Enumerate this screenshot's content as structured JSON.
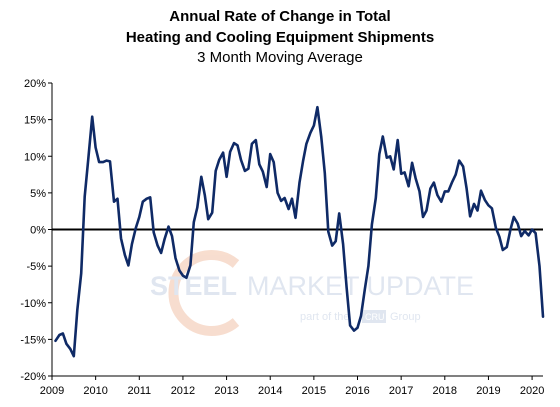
{
  "chart_data": {
    "type": "line",
    "title_lines": [
      "Annual Rate of Change in Total",
      "Heating and Cooling Equipment Shipments"
    ],
    "subtitle": "3 Month Moving Average",
    "xlabel": "",
    "ylabel": "",
    "xlim": [
      2009.0,
      2020.25
    ],
    "ylim": [
      -20,
      20
    ],
    "y_ticks": [
      20,
      15,
      10,
      5,
      0,
      -5,
      -10,
      -15,
      -20
    ],
    "y_tick_labels": [
      "20%",
      "15%",
      "10%",
      "5%",
      "0%",
      "-5%",
      "-10%",
      "-15%",
      "-20%"
    ],
    "x_ticks": [
      2009,
      2010,
      2011,
      2012,
      2013,
      2014,
      2015,
      2016,
      2017,
      2018,
      2019,
      2020
    ],
    "x_tick_labels": [
      "2009",
      "2010",
      "2011",
      "2012",
      "2013",
      "2014",
      "2015",
      "2016",
      "2017",
      "2018",
      "2019",
      "2020"
    ],
    "grid": false,
    "legend": "none",
    "line_color": "#0f2a66",
    "zero_line_color": "#000000",
    "series": [
      {
        "x": [
          2009.08,
          2009.17,
          2009.25,
          2009.33,
          2009.42,
          2009.5,
          2009.58,
          2009.67,
          2009.75,
          2009.83,
          2009.92,
          2010.0,
          2010.08,
          2010.17,
          2010.25,
          2010.33,
          2010.42,
          2010.5,
          2010.58,
          2010.67,
          2010.75,
          2010.83,
          2010.92,
          2011.0,
          2011.08,
          2011.17,
          2011.25,
          2011.33,
          2011.42,
          2011.5,
          2011.58,
          2011.67,
          2011.75,
          2011.83,
          2011.92,
          2012.0,
          2012.08,
          2012.17,
          2012.25,
          2012.33,
          2012.42,
          2012.5,
          2012.58,
          2012.67,
          2012.75,
          2012.83,
          2012.92,
          2013.0,
          2013.08,
          2013.17,
          2013.25,
          2013.33,
          2013.42,
          2013.5,
          2013.58,
          2013.67,
          2013.75,
          2013.83,
          2013.92,
          2014.0,
          2014.08,
          2014.17,
          2014.25,
          2014.33,
          2014.42,
          2014.5,
          2014.58,
          2014.67,
          2014.75,
          2014.83,
          2014.92,
          2015.0,
          2015.08,
          2015.17,
          2015.25,
          2015.33,
          2015.42,
          2015.5,
          2015.58,
          2015.67,
          2015.75,
          2015.83,
          2015.92,
          2016.0,
          2016.08,
          2016.17,
          2016.25,
          2016.33,
          2016.42,
          2016.5,
          2016.58,
          2016.67,
          2016.75,
          2016.83,
          2016.92,
          2017.0,
          2017.08,
          2017.17,
          2017.25,
          2017.33,
          2017.42,
          2017.5,
          2017.58,
          2017.67,
          2017.75,
          2017.83,
          2017.92,
          2018.0,
          2018.08,
          2018.17,
          2018.25,
          2018.33,
          2018.42,
          2018.5,
          2018.58,
          2018.67,
          2018.75,
          2018.83,
          2018.92,
          2019.0,
          2019.08,
          2019.17,
          2019.25,
          2019.33,
          2019.42,
          2019.5,
          2019.58,
          2019.67,
          2019.75,
          2019.83,
          2019.92,
          2020.0,
          2020.08,
          2020.17,
          2020.25
        ],
        "y": [
          -15.2,
          -14.4,
          -14.2,
          -15.6,
          -16.3,
          -17.3,
          -11.0,
          -6.0,
          4.5,
          9.5,
          15.4,
          11.2,
          9.2,
          9.2,
          9.4,
          9.3,
          3.8,
          4.2,
          -1.2,
          -3.5,
          -4.9,
          -2.0,
          0.2,
          1.7,
          3.8,
          4.2,
          4.4,
          -0.4,
          -2.2,
          -3.2,
          -1.3,
          0.4,
          -0.9,
          -3.9,
          -5.6,
          -6.3,
          -6.6,
          -4.9,
          1.0,
          3.0,
          7.2,
          4.7,
          1.4,
          2.3,
          8.0,
          9.5,
          10.5,
          7.2,
          10.6,
          11.8,
          11.5,
          9.5,
          8.0,
          8.3,
          11.7,
          12.2,
          8.9,
          7.9,
          5.8,
          10.3,
          9.2,
          5.0,
          3.9,
          4.3,
          2.8,
          4.2,
          1.6,
          6.4,
          9.3,
          11.7,
          13.2,
          14.2,
          16.7,
          12.6,
          7.7,
          -0.3,
          -2.2,
          -1.6,
          2.2,
          -2.0,
          -7.9,
          -13.1,
          -13.8,
          -13.4,
          -11.8,
          -8.1,
          -5.0,
          0.7,
          4.3,
          10.3,
          12.7,
          9.8,
          10.0,
          8.2,
          12.2,
          7.6,
          7.8,
          5.9,
          9.1,
          7.0,
          5.2,
          1.7,
          2.6,
          5.6,
          6.4,
          4.7,
          3.8,
          5.2,
          5.2,
          6.5,
          7.5,
          9.4,
          8.6,
          5.6,
          1.8,
          3.5,
          2.6,
          5.3,
          4.0,
          3.3,
          2.9,
          0.2,
          -1.0,
          -2.8,
          -2.4,
          -0.1,
          1.7,
          0.8,
          -0.9,
          -0.2,
          -0.8,
          0.0,
          -0.5,
          -5.0,
          -11.9
        ]
      }
    ]
  },
  "watermark": {
    "brand_left": "STEEL",
    "brand_right": "MARKET UPDATE",
    "tagline_prefix": "part of the",
    "tagline_badge": "CRU",
    "tagline_suffix": "Group",
    "arc_color": "#f2c2a8",
    "text_color": "#c7d2e4"
  }
}
